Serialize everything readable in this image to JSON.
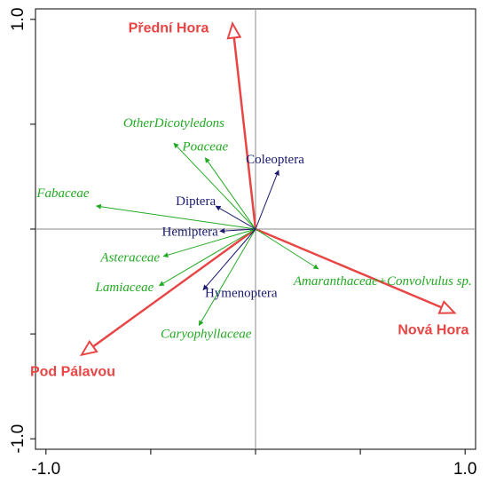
{
  "chart_data": {
    "type": "biplot",
    "xlim": [
      -1.05,
      1.05
    ],
    "ylim": [
      -1.05,
      1.05
    ],
    "x_ticks": [
      "-1.0",
      "1.0"
    ],
    "y_ticks": [
      "1.0",
      "-1.0"
    ],
    "x_tick_values": [
      -1.0,
      1.0
    ],
    "y_tick_values": [
      1.0,
      -1.0
    ],
    "minor_ticks": [
      -0.5,
      0.5
    ],
    "grid": false,
    "origin_lines": true,
    "colors": {
      "environment": "#e84545",
      "plants": "#22aa22",
      "insects": "#1a1a6e"
    },
    "environmental_variables": [
      {
        "name": "Přední Hora",
        "x": -0.11,
        "y": 0.98
      },
      {
        "name": "Nová Hora",
        "x": 0.95,
        "y": -0.4
      },
      {
        "name": "Pod Pálavou",
        "x": -0.83,
        "y": -0.6
      }
    ],
    "plant_groups": [
      {
        "name": "OtherDicotyledons",
        "x": -0.39,
        "y": 0.41
      },
      {
        "name": "Poaceae",
        "x": -0.24,
        "y": 0.34
      },
      {
        "name": "Fabaceae",
        "x": -0.76,
        "y": 0.11
      },
      {
        "name": "Asteraceae",
        "x": -0.44,
        "y": -0.13
      },
      {
        "name": "Lamiaceae",
        "x": -0.46,
        "y": -0.27
      },
      {
        "name": "Caryophyllaceae",
        "x": -0.27,
        "y": -0.46
      },
      {
        "name": "Amaranthaceae+Convolvulus sp.",
        "x": 0.3,
        "y": -0.19
      }
    ],
    "insect_orders": [
      {
        "name": "Coleoptera",
        "x": 0.11,
        "y": 0.28
      },
      {
        "name": "Diptera",
        "x": -0.19,
        "y": 0.11
      },
      {
        "name": "Hemiptera",
        "x": -0.17,
        "y": -0.01
      },
      {
        "name": "Hymenoptera",
        "x": -0.25,
        "y": -0.29
      }
    ]
  }
}
